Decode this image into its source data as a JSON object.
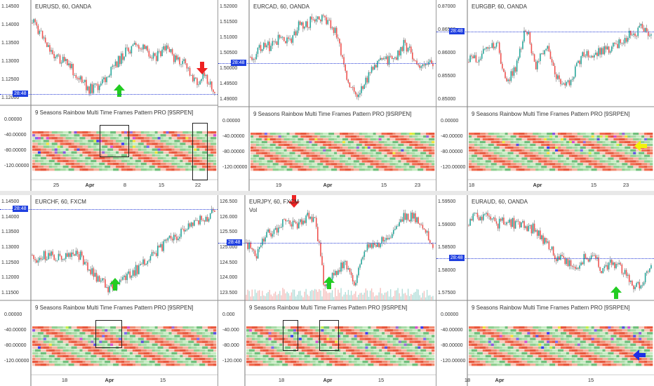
{
  "panels": [
    {
      "id": "p1",
      "symbol": "EURUSD, 60, OANDA",
      "indicator": "9 Seasons Rainbow Multi Time Frames Pattern PRO [9SRPEN]",
      "price_ticks": [
        "1.14500",
        "1.14000",
        "1.13500",
        "1.13000",
        "1.12500",
        "1.12000"
      ],
      "ind_ticks": [
        "0.00000",
        "-40.00000",
        "-80.00000",
        "-120.00000"
      ],
      "badge": "28:48",
      "x_labels": [
        "25",
        "Apr",
        "8",
        "15",
        "22"
      ],
      "bold_label": "Apr",
      "arrows": [
        "green-up",
        "red-down"
      ]
    },
    {
      "id": "p2",
      "symbol": "EURCAD, 60, OANDA",
      "indicator": "9 Seasons Rainbow Multi Time Frames Pattern PRO [9SRPEN]",
      "price_ticks": [
        "1.52000",
        "1.51500",
        "1.51000",
        "1.50500",
        "1.50000",
        "1.49500",
        "1.49000"
      ],
      "ind_ticks": [
        "0.00000",
        "-40.00000",
        "-80.00000",
        "-120.00000"
      ],
      "badge": "28:48",
      "x_labels": [
        "19",
        "Apr",
        "15",
        "23"
      ],
      "bold_label": "Apr",
      "arrows": []
    },
    {
      "id": "p3",
      "symbol": "EURGBP, 60, OANDA",
      "indicator": "9 Seasons Rainbow Multi Time Frames Pattern PRO [9SRPEN]",
      "price_ticks": [
        "0.87000",
        "0.86500",
        "0.86000",
        "0.85500",
        "0.85000"
      ],
      "ind_ticks": [
        "0.00000",
        "-40.00000",
        "-80.00000",
        "-120.00000"
      ],
      "badge": "28:48",
      "x_labels": [
        "18",
        "Apr",
        "15",
        "23"
      ],
      "bold_label": "Apr",
      "arrows": [
        "yellow-left"
      ]
    },
    {
      "id": "p4",
      "symbol": "EURCHF, 60, FXCM",
      "indicator": "9 Seasons Rainbow Multi Time Frames Pattern PRO [9SRPEN]",
      "price_ticks": [
        "1.14500",
        "1.14000",
        "1.13500",
        "1.13000",
        "1.12500",
        "1.12000",
        "1.11500"
      ],
      "ind_ticks": [
        "0.00000",
        "-40.00000",
        "-80.00000",
        "-120.00000"
      ],
      "badge": "28:48",
      "x_labels": [
        "18",
        "Apr",
        "15"
      ],
      "bold_label": "Apr",
      "arrows": [
        "green-up"
      ]
    },
    {
      "id": "p5",
      "symbol": "EURJPY, 60, FXCM",
      "vol": "Vol",
      "indicator": "9 Seasons Rainbow Multi Time Frames Pattern PRO [9SRPEN]",
      "price_ticks": [
        "126.500",
        "126.000",
        "125.500",
        "125.000",
        "124.500",
        "124.000",
        "123.500"
      ],
      "ind_ticks": [
        "0.000",
        "-40.000",
        "-80.000",
        "-120.000"
      ],
      "badge": "28:48",
      "x_labels": [
        "18",
        "Apr",
        "15"
      ],
      "bold_label": "Apr",
      "arrows": [
        "red-down",
        "green-up"
      ]
    },
    {
      "id": "p6",
      "symbol": "EURAUD, 60, OANDA",
      "indicator": "9 Seasons Rainbow Multi Time Frames Pattern PRO [9SRPEN]",
      "price_ticks": [
        "1.59500",
        "1.59000",
        "1.58500",
        "1.58000",
        "1.57500"
      ],
      "ind_ticks": [
        "0.00000",
        "-40.00000",
        "-80.00000",
        "-120.00000"
      ],
      "badge": "28:48",
      "x_labels": [
        "18",
        "Apr",
        "15"
      ],
      "bold_label": "Apr",
      "arrows": [
        "green-up",
        "blue-left"
      ]
    }
  ]
}
